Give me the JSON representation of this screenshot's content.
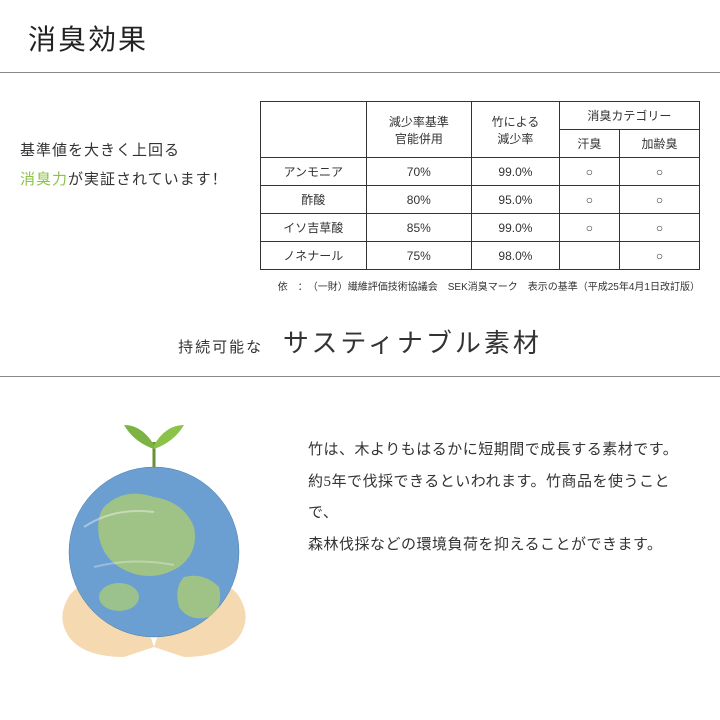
{
  "title": "消臭効果",
  "intro": {
    "line1": "基準値を大きく上回る",
    "accent": "消臭力",
    "line2_rest": "が実証されています！"
  },
  "table": {
    "headers": {
      "blank": "",
      "col1": "減少率基準\n官能併用",
      "col2": "竹による\n減少率",
      "group": "消臭カテゴリー",
      "sub1": "汗臭",
      "sub2": "加齢臭"
    },
    "rows": [
      {
        "name": "アンモニア",
        "c1": "70%",
        "c2": "99.0%",
        "c3": "○",
        "c4": "○"
      },
      {
        "name": "酢酸",
        "c1": "80%",
        "c2": "95.0%",
        "c3": "○",
        "c4": "○"
      },
      {
        "name": "イソ吉草酸",
        "c1": "85%",
        "c2": "99.0%",
        "c3": "○",
        "c4": "○"
      },
      {
        "name": "ノネナール",
        "c1": "75%",
        "c2": "98.0%",
        "c3": "",
        "c4": "○"
      }
    ],
    "note": "依　：　（一財）繊維評価技術協議会　SEK消臭マーク　表示の基準（平成25年4月1日改訂版）"
  },
  "headline2": {
    "small": "持続可能な",
    "big": "サスティナブル素材"
  },
  "desc": {
    "l1": "竹は、木よりもはるかに短期間で成長する素材です。",
    "l2": "約5年で伐採できるといわれます。竹商品を使うことで、",
    "l3": "森林伐採などの環境負荷を抑えることができます。"
  },
  "colors": {
    "accent": "#8bc34a",
    "ocean": "#5a8fc7",
    "land": "#a8c97a",
    "hand": "#f4d5a8",
    "leaf": "#7cb342"
  }
}
